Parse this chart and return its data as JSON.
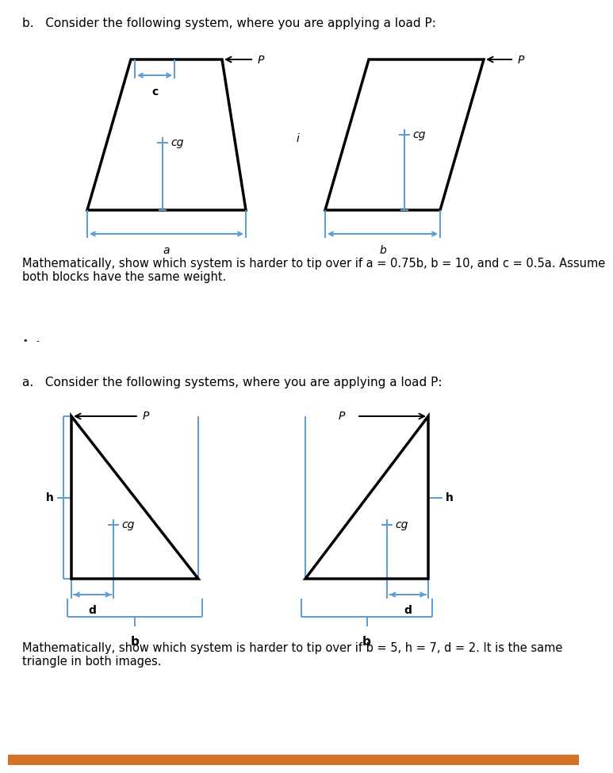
{
  "bg_color": "#ffffff",
  "title_b": "b.   Consider the following system, where you are applying a load P:",
  "title_a": "a.   Consider the following systems, where you are applying a load P:",
  "text_b": "Mathematically, show which system is harder to tip over if a = 0.75b, b = 10, and c = 0.5a. Assume\nboth blocks have the same weight.",
  "text_a": "Mathematically, show which system is harder to tip over if b = 5, h = 7, d = 2. It is the same\ntriangle in both images.",
  "shape_color": "#000000",
  "dim_color": "#5b9bd5",
  "lw_shape": 2.5,
  "lw_dim": 1.4,
  "fontsize_label": 10,
  "fontsize_title": 11,
  "fontsize_text": 10.5,
  "orange_bar": "#d4722a"
}
